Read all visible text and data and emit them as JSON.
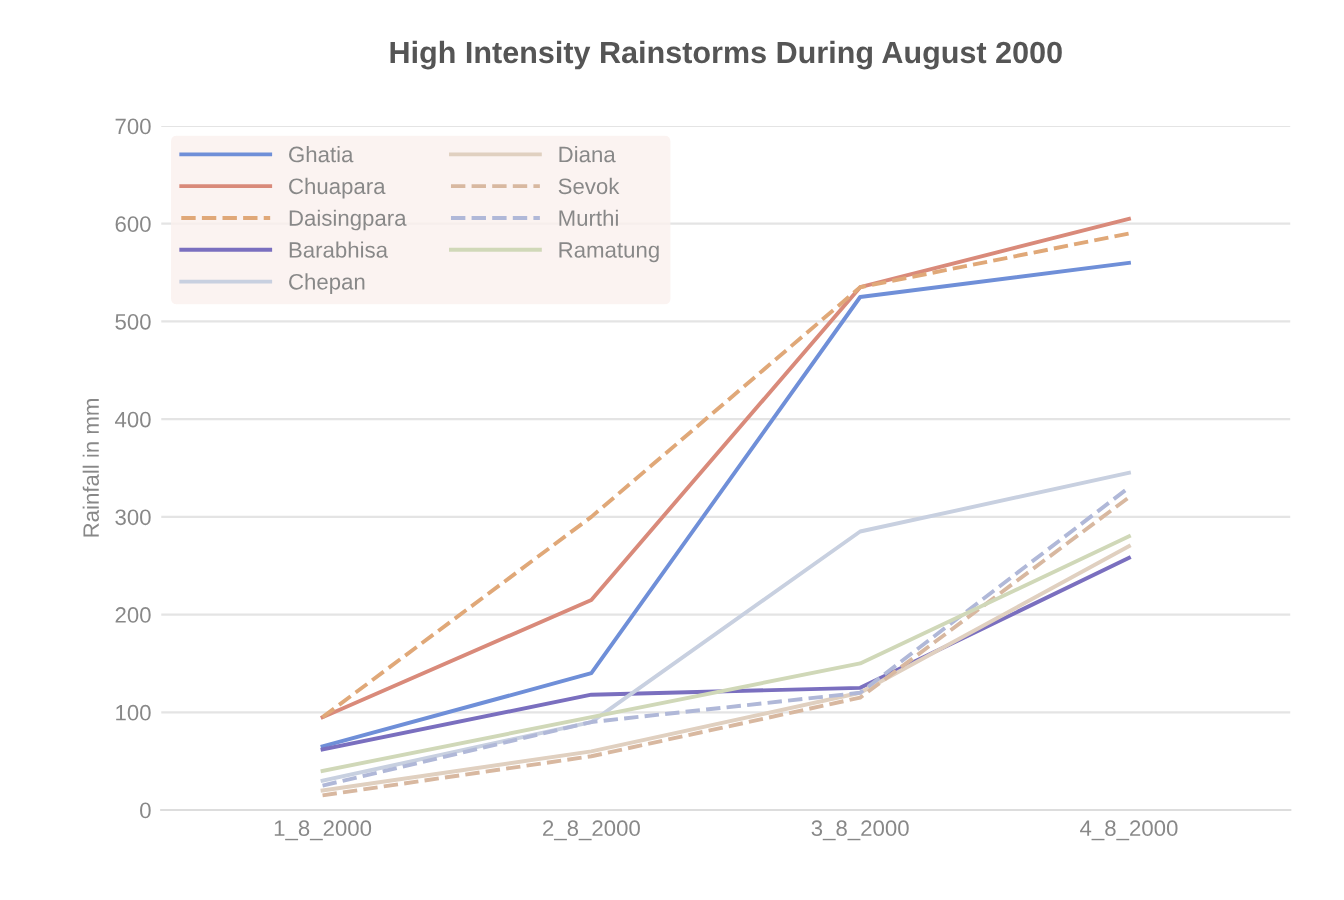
{
  "chart_data": {
    "type": "line",
    "title": "High Intensity Rainstorms During August 2000",
    "ylabel": "Rainfall in mm",
    "categories": [
      "1_8_2000",
      "2_8_2000",
      "3_8_2000",
      "4_8_2000"
    ],
    "series": [
      {
        "name": "Ghatia",
        "color": "#6f8fd8",
        "values": [
          65,
          140,
          525,
          560
        ]
      },
      {
        "name": "Chuapara",
        "color": "#d98a7a",
        "values": [
          95,
          215,
          535,
          605
        ]
      },
      {
        "name": "Daisingpara",
        "color": "#e0a878",
        "line_style": "dashed",
        "values": [
          95,
          300,
          535,
          590
        ]
      },
      {
        "name": "Barabhisa",
        "color": "#7a6fbf",
        "values": [
          62,
          118,
          125,
          258
        ]
      },
      {
        "name": "Chepan",
        "color": "#c8d0e0",
        "values": [
          30,
          90,
          285,
          345
        ]
      },
      {
        "name": "Diana",
        "color": "#e0d0c0",
        "values": [
          20,
          60,
          120,
          270
        ]
      },
      {
        "name": "Sevok",
        "color": "#d8b8a0",
        "line_style": "dashed",
        "values": [
          15,
          55,
          115,
          320
        ]
      },
      {
        "name": "Murthi",
        "color": "#b0b8d8",
        "line_style": "dashed",
        "values": [
          25,
          90,
          120,
          330
        ]
      },
      {
        "name": "Ramatung",
        "color": "#d0d8b8",
        "values": [
          40,
          95,
          150,
          280
        ]
      }
    ],
    "ylim": [
      0,
      700
    ],
    "yticks": [
      0,
      100,
      200,
      300,
      400,
      500,
      600,
      700
    ],
    "grid": "y",
    "legend": "top left",
    "marker": "none"
  }
}
